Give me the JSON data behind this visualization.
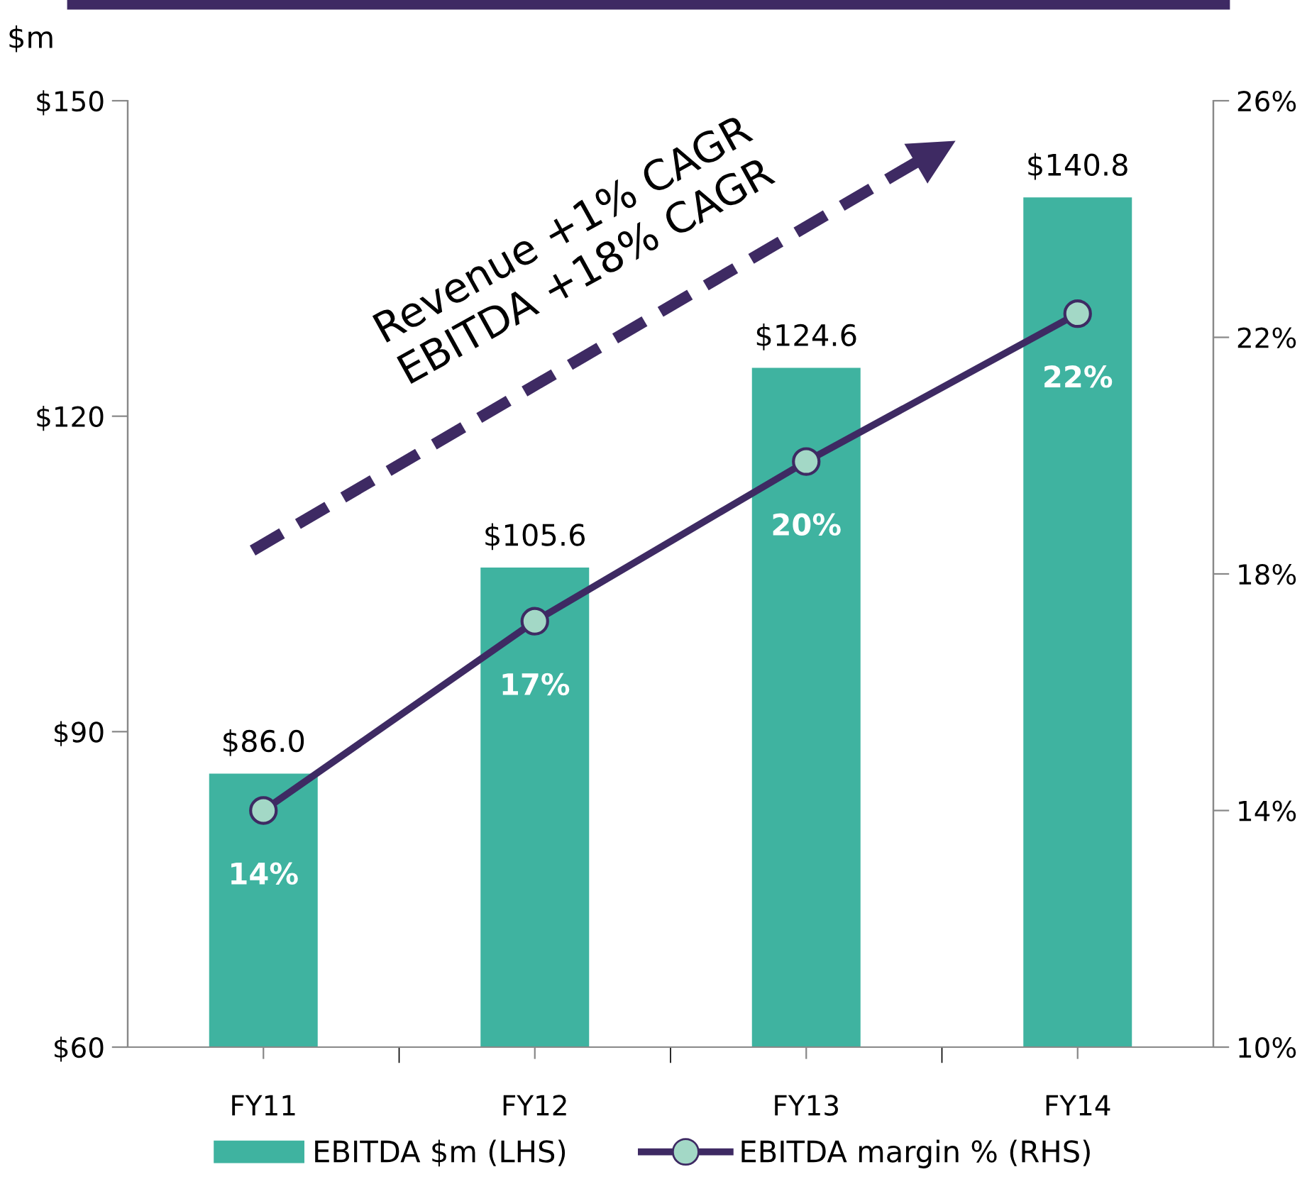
{
  "chart_data": {
    "type": "bar",
    "ylabel": "$m",
    "categories": [
      "FY11",
      "FY12",
      "FY13",
      "FY14"
    ],
    "series": [
      {
        "name": "EBITDA $m (LHS)",
        "color": "#3fb3a0",
        "values": [
          86.0,
          105.6,
          124.6,
          140.8
        ],
        "value_labels": [
          "$86.0",
          "$105.6",
          "$124.6",
          "$140.8"
        ]
      },
      {
        "name": "EBITDA margin % (RHS)",
        "type": "line",
        "axis": "y2",
        "color": "#3e2a63",
        "marker": "circle",
        "values": [
          14.0,
          17.2,
          19.9,
          22.4
        ],
        "value_labels": [
          "14%",
          "17%",
          "20%",
          "22%"
        ]
      }
    ],
    "ylim": [
      60,
      150
    ],
    "yticks": [
      {
        "value": 60,
        "label": "$60"
      },
      {
        "value": 90,
        "label": "$90"
      },
      {
        "value": 120,
        "label": "$120"
      },
      {
        "value": 150,
        "label": "$150"
      }
    ],
    "y2lim": [
      10,
      26
    ],
    "y2ticks": [
      {
        "value": 10,
        "label": "10%"
      },
      {
        "value": 14,
        "label": "14%"
      },
      {
        "value": 18,
        "label": "18%"
      },
      {
        "value": 22,
        "label": "22%"
      },
      {
        "value": 26,
        "label": "26%"
      }
    ],
    "annotations": [
      "Revenue +1% CAGR",
      "EBITDA +18% CAGR"
    ],
    "grid": false,
    "legend": "bottom"
  }
}
